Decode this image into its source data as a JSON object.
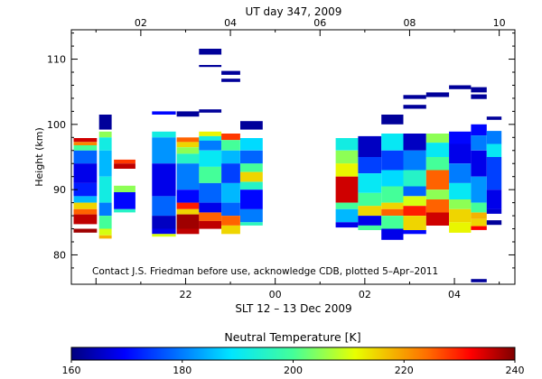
{
  "chart_data": {
    "type": "heatmap",
    "title": "UT day 347, 2009",
    "top_axis": {
      "label": "UT day 347, 2009",
      "ticks": [
        {
          "pos": 2,
          "label": "02"
        },
        {
          "pos": 4,
          "label": "04"
        },
        {
          "pos": 6,
          "label": "06"
        },
        {
          "pos": 8,
          "label": "08"
        },
        {
          "pos": 10,
          "label": "10"
        }
      ]
    },
    "bottom_axis": {
      "label": "SLT 12 – 13 Dec 2009",
      "ticks": [
        {
          "pos": 3,
          "label": "22"
        },
        {
          "pos": 5,
          "label": "00"
        },
        {
          "pos": 7,
          "label": "02"
        },
        {
          "pos": 9,
          "label": "04"
        }
      ]
    },
    "xlim": [
      0.45,
      10.35
    ],
    "ylabel": "Height (km)",
    "ylim": [
      75.5,
      114.5
    ],
    "y_ticks": [
      80,
      90,
      100,
      110
    ],
    "annotation": "Contact J.S. Friedman before use, acknowledge CDB, plotted 5–Apr–2011",
    "colorbar": {
      "label": "Neutral Temperature [K]",
      "min": 160,
      "max": 240,
      "ticks": [
        160,
        180,
        200,
        220,
        240
      ]
    },
    "columns": [
      {
        "x0": 0.5,
        "x1": 1.02,
        "segments": [
          [
            97.9,
            97.3,
            235
          ],
          [
            97.3,
            96.8,
            222
          ],
          [
            96.8,
            96.0,
            200
          ],
          [
            96.0,
            94.0,
            178
          ],
          [
            94.0,
            91.0,
            168
          ],
          [
            91.0,
            89.0,
            172
          ],
          [
            89.0,
            88.0,
            185
          ],
          [
            88.0,
            87.0,
            215
          ],
          [
            87.0,
            86.2,
            225
          ],
          [
            86.2,
            84.7,
            236
          ],
          [
            84.0,
            83.4,
            238
          ]
        ]
      },
      {
        "x0": 1.07,
        "x1": 1.35,
        "segments": [
          [
            101.5,
            99.2,
            162
          ],
          [
            98.9,
            98.0,
            205
          ],
          [
            98.0,
            96.0,
            192
          ],
          [
            96.0,
            92.0,
            185
          ],
          [
            92.0,
            88.0,
            192
          ],
          [
            88.0,
            86.0,
            180
          ],
          [
            86.0,
            84.0,
            200
          ],
          [
            84.0,
            83.0,
            210
          ],
          [
            83.0,
            82.5,
            218
          ]
        ]
      },
      {
        "x0": 1.4,
        "x1": 1.88,
        "segments": [
          [
            94.6,
            94.0,
            228
          ],
          [
            94.0,
            93.2,
            236
          ],
          [
            90.6,
            89.6,
            205
          ],
          [
            89.6,
            87.0,
            170
          ],
          [
            87.0,
            86.5,
            195
          ]
        ]
      },
      {
        "x0": 2.25,
        "x1": 2.78,
        "segments": [
          [
            102.0,
            101.5,
            170
          ],
          [
            98.9,
            98.0,
            192
          ],
          [
            98.0,
            94.0,
            182
          ],
          [
            94.0,
            89.0,
            168
          ],
          [
            89.0,
            86.0,
            178
          ],
          [
            86.0,
            84.0,
            165
          ],
          [
            84.0,
            83.2,
            168
          ],
          [
            83.2,
            82.8,
            210
          ]
        ]
      },
      {
        "x0": 2.8,
        "x1": 3.3,
        "segments": [
          [
            102.0,
            101.2,
            162
          ],
          [
            98.0,
            97.3,
            225
          ],
          [
            97.3,
            96.5,
            215
          ],
          [
            96.5,
            95.5,
            205
          ],
          [
            95.5,
            94.0,
            195
          ],
          [
            94.0,
            90.0,
            180
          ],
          [
            90.0,
            88.0,
            170
          ],
          [
            88.0,
            87.0,
            230
          ],
          [
            87.0,
            86.2,
            215
          ],
          [
            86.2,
            84.0,
            238
          ],
          [
            84.0,
            83.2,
            236
          ]
        ]
      },
      {
        "x0": 3.3,
        "x1": 3.8,
        "segments": [
          [
            111.6,
            110.7,
            162
          ],
          [
            109.1,
            108.8,
            162
          ],
          [
            102.3,
            101.8,
            162
          ],
          [
            98.9,
            98.2,
            212
          ],
          [
            98.2,
            97.5,
            192
          ],
          [
            97.5,
            96.0,
            180
          ],
          [
            96.0,
            93.5,
            190
          ],
          [
            93.5,
            91.0,
            200
          ],
          [
            91.0,
            88.0,
            178
          ],
          [
            88.0,
            86.5,
            168
          ],
          [
            86.5,
            85.2,
            225
          ],
          [
            85.2,
            84.0,
            236
          ]
        ]
      },
      {
        "x0": 3.8,
        "x1": 4.22,
        "segments": [
          [
            108.2,
            107.6,
            162
          ],
          [
            107.0,
            106.5,
            162
          ],
          [
            98.6,
            97.6,
            228
          ],
          [
            97.6,
            96.0,
            200
          ],
          [
            96.0,
            94.0,
            185
          ],
          [
            94.0,
            91.0,
            175
          ],
          [
            91.0,
            88.0,
            185
          ],
          [
            88.0,
            86.0,
            178
          ],
          [
            86.0,
            84.5,
            225
          ],
          [
            84.5,
            83.2,
            215
          ]
        ]
      },
      {
        "x0": 4.22,
        "x1": 4.72,
        "segments": [
          [
            100.5,
            99.2,
            162
          ],
          [
            97.9,
            96.0,
            188
          ],
          [
            96.0,
            94.0,
            178
          ],
          [
            94.0,
            92.7,
            200
          ],
          [
            92.7,
            91.2,
            215
          ],
          [
            91.2,
            90.0,
            195
          ],
          [
            90.0,
            87.0,
            170
          ],
          [
            87.0,
            85.0,
            180
          ],
          [
            85.0,
            84.5,
            196
          ]
        ]
      },
      {
        "x0": 6.35,
        "x1": 6.85,
        "segments": [
          [
            97.9,
            96.0,
            192
          ],
          [
            96.0,
            94.0,
            205
          ],
          [
            94.0,
            92.0,
            212
          ],
          [
            92.0,
            88.0,
            235
          ],
          [
            88.0,
            87.0,
            200
          ],
          [
            87.0,
            85.0,
            185
          ],
          [
            85.0,
            84.2,
            168
          ]
        ]
      },
      {
        "x0": 6.85,
        "x1": 7.37,
        "segments": [
          [
            98.2,
            95.0,
            165
          ],
          [
            95.0,
            92.5,
            175
          ],
          [
            92.5,
            89.5,
            190
          ],
          [
            89.5,
            87.5,
            200
          ],
          [
            87.5,
            86.0,
            215
          ],
          [
            86.0,
            84.5,
            168
          ],
          [
            84.5,
            83.8,
            200
          ]
        ]
      },
      {
        "x0": 7.37,
        "x1": 7.86,
        "segments": [
          [
            101.5,
            100.0,
            162
          ],
          [
            98.6,
            96.0,
            190
          ],
          [
            96.0,
            93.0,
            175
          ],
          [
            93.0,
            90.5,
            188
          ],
          [
            90.5,
            88.0,
            200
          ],
          [
            88.0,
            87.0,
            215
          ],
          [
            87.0,
            86.0,
            225
          ],
          [
            86.0,
            84.0,
            200
          ],
          [
            84.0,
            82.3,
            168
          ]
        ]
      },
      {
        "x0": 7.86,
        "x1": 8.37,
        "segments": [
          [
            104.5,
            103.9,
            162
          ],
          [
            103.0,
            102.4,
            162
          ],
          [
            98.6,
            96.0,
            165
          ],
          [
            96.0,
            93.0,
            180
          ],
          [
            93.0,
            90.5,
            195
          ],
          [
            90.5,
            89.0,
            178
          ],
          [
            89.0,
            87.5,
            210
          ],
          [
            87.5,
            86.0,
            230
          ],
          [
            86.0,
            83.8,
            215
          ],
          [
            83.8,
            83.2,
            170
          ]
        ]
      },
      {
        "x0": 8.37,
        "x1": 8.88,
        "segments": [
          [
            104.9,
            104.2,
            162
          ],
          [
            98.6,
            97.2,
            205
          ],
          [
            97.2,
            95.0,
            190
          ],
          [
            95.0,
            93.0,
            200
          ],
          [
            93.0,
            90.0,
            225
          ],
          [
            90.0,
            88.5,
            205
          ],
          [
            88.5,
            86.5,
            225
          ],
          [
            86.5,
            84.5,
            235
          ]
        ]
      },
      {
        "x0": 8.88,
        "x1": 9.37,
        "segments": [
          [
            106.0,
            105.4,
            162
          ],
          [
            98.9,
            97.0,
            170
          ],
          [
            97.0,
            94.0,
            168
          ],
          [
            94.0,
            91.0,
            180
          ],
          [
            91.0,
            88.5,
            190
          ],
          [
            88.5,
            87.0,
            205
          ],
          [
            87.0,
            85.0,
            215
          ],
          [
            85.0,
            83.4,
            212
          ]
        ]
      },
      {
        "x0": 9.37,
        "x1": 9.72,
        "segments": [
          [
            105.7,
            104.9,
            162
          ],
          [
            104.6,
            103.9,
            162
          ],
          [
            100.0,
            98.3,
            170
          ],
          [
            98.3,
            96.0,
            180
          ],
          [
            96.0,
            92.0,
            168
          ],
          [
            92.0,
            88.0,
            182
          ],
          [
            88.0,
            86.5,
            200
          ],
          [
            86.5,
            85.5,
            218
          ],
          [
            85.5,
            84.4,
            215
          ],
          [
            84.4,
            83.8,
            232
          ],
          [
            76.3,
            75.8,
            162
          ]
        ]
      },
      {
        "x0": 9.72,
        "x1": 10.05,
        "segments": [
          [
            101.2,
            100.7,
            162
          ],
          [
            99.0,
            97.0,
            180
          ],
          [
            97.0,
            95.0,
            190
          ],
          [
            95.0,
            90.0,
            175
          ],
          [
            90.0,
            87.0,
            168
          ],
          [
            87.0,
            86.3,
            166
          ],
          [
            85.3,
            84.6,
            162
          ]
        ]
      }
    ]
  }
}
